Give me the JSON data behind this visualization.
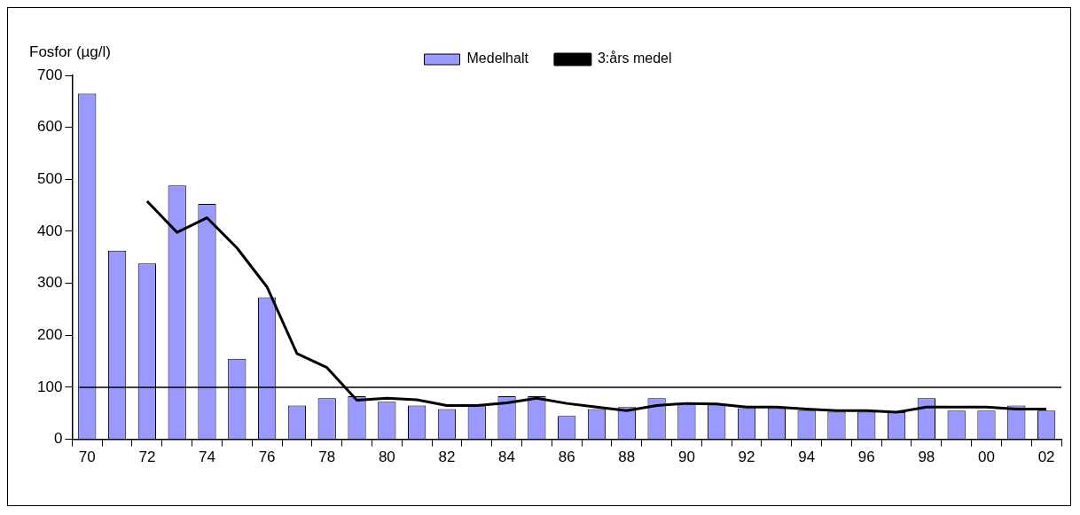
{
  "chart_data": {
    "type": "bar",
    "ylabel": "Fosfor (µg/l)",
    "categories": [
      "70",
      null,
      "72",
      null,
      "74",
      null,
      "76",
      null,
      "78",
      null,
      "80",
      null,
      "82",
      null,
      "84",
      null,
      "86",
      null,
      "88",
      null,
      "90",
      null,
      "92",
      null,
      "94",
      null,
      "96",
      null,
      "98",
      null,
      "00",
      null,
      "02"
    ],
    "series": [
      {
        "name": "Medelhalt",
        "color": "#9999ff",
        "values": [
          665,
          363,
          338,
          488,
          453,
          155,
          273,
          65,
          79,
          83,
          72,
          65,
          58,
          65,
          83,
          83,
          45,
          58,
          62,
          79,
          70,
          68,
          60,
          60,
          55,
          53,
          53,
          52,
          79,
          55,
          55,
          65,
          55
        ]
      },
      {
        "name": "3:års medel",
        "type": "line",
        "color": "#000000",
        "values": [
          null,
          null,
          458,
          398,
          426,
          368,
          293,
          165,
          138,
          75,
          79,
          76,
          65,
          65,
          70,
          79,
          69,
          62,
          55,
          65,
          69,
          68,
          62,
          62,
          58,
          55,
          55,
          52,
          62,
          62,
          62,
          58,
          58
        ]
      }
    ],
    "ylim": [
      0,
      700
    ],
    "yticks": [
      0,
      100,
      200,
      300,
      400,
      500,
      600,
      700
    ],
    "ref_lines": [
      {
        "axis": "y",
        "value": 100,
        "color": "#000000"
      }
    ],
    "grid": false,
    "legend": "top",
    "marker": "none"
  }
}
